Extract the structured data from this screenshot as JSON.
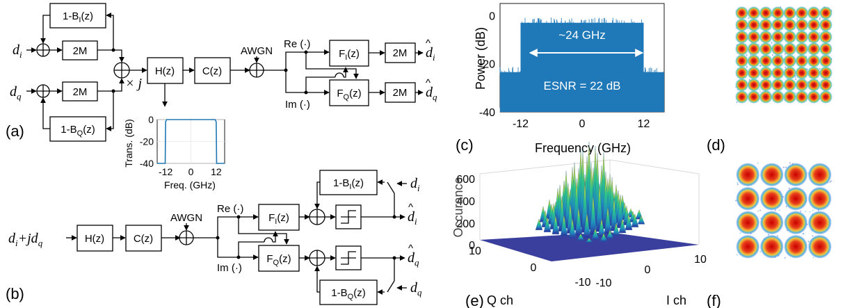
{
  "panel_labels": {
    "a": "(a)",
    "b": "(b)",
    "c": "(c)",
    "d": "(d)",
    "e": "(e)",
    "f": "(f)"
  },
  "diagram_a": {
    "in_i": "d",
    "in_i_sub": "i",
    "in_q": "d",
    "in_q_sub": "q",
    "fb_i": "1-B",
    "fb_i_sub": "I",
    "fb_q": "1-B",
    "fb_q_sub": "Q",
    "fb_arg": "(z)",
    "up": "2M",
    "times_j": "× j",
    "h": "H(z)",
    "c": "C(z)",
    "awgn": "AWGN",
    "re": "Re (·)",
    "im": "Im (·)",
    "fi": "F",
    "fi_sub": "I",
    "fq": "F",
    "fq_sub": "Q",
    "out_i": "d",
    "out_i_sub": "i",
    "out_q": "d",
    "out_q_sub": "q"
  },
  "diagram_b": {
    "input": "d",
    "input_i_sub": "i",
    "input_mid": "+jd",
    "input_q_sub": "q",
    "h": "H(z)",
    "c": "C(z)",
    "awgn": "AWGN",
    "re": "Re (·)",
    "im": "Im (·)",
    "fi": "F",
    "fi_sub": "I",
    "fq": "F",
    "fq_sub": "Q",
    "fb_i": "1-B",
    "fb_i_sub": "I",
    "fb_q": "1-B",
    "fb_q_sub": "Q",
    "fb_arg": "(z)",
    "di": "d",
    "di_sub": "i",
    "dq": "d",
    "dq_sub": "q",
    "out_i": "d",
    "out_i_sub": "i",
    "out_q": "d",
    "out_q_sub": "q"
  },
  "inset_chart": {
    "type": "line",
    "ylabel": "Trans. (dB)",
    "xlabel": "Freq. (GHz)",
    "xticks": [
      "-12",
      "0",
      "12"
    ],
    "yticks": [
      "0",
      "-20",
      "-40"
    ],
    "xlim": [
      -16,
      16
    ],
    "ylim": [
      -40,
      0
    ],
    "x": [
      -16,
      -12.2,
      -12,
      -11.5,
      11.5,
      12,
      12.2,
      16
    ],
    "y": [
      -40,
      -40,
      -2,
      0,
      0,
      -2,
      -40,
      -40
    ],
    "color": "#1f77b4"
  },
  "chart_data": {
    "type": "area",
    "xlabel": "Frequency (GHz)",
    "ylabel": "Power (dB)",
    "xticks": [
      "-12",
      "0",
      "12"
    ],
    "yticks": [
      "0",
      "-20",
      "-40"
    ],
    "xlim": [
      -16,
      16
    ],
    "ylim": [
      -40,
      5
    ],
    "series": [
      {
        "x": [
          -16,
          -12,
          -12,
          12,
          12,
          16
        ],
        "y": [
          -23.5,
          -23.5,
          -3,
          -3,
          -23.5,
          -23.5
        ]
      }
    ],
    "color": "#1f78b8",
    "annotations": [
      {
        "text": "~24 GHz",
        "x": 0,
        "y": -8
      },
      {
        "text": "ESNR = 22 dB",
        "x": 0,
        "y": -29
      }
    ]
  },
  "surface_plot": {
    "zlabel": "Occurance",
    "zticks": [
      "600",
      "400",
      "200",
      "0"
    ],
    "qlabel": "Q ch",
    "ilabel": "I ch",
    "qticks": [
      "10",
      "0",
      "-10"
    ],
    "iticks": [
      "-10",
      "0",
      "10"
    ]
  },
  "constellation_d": {
    "grid": 8
  },
  "constellation_f": {
    "grid": 4
  }
}
